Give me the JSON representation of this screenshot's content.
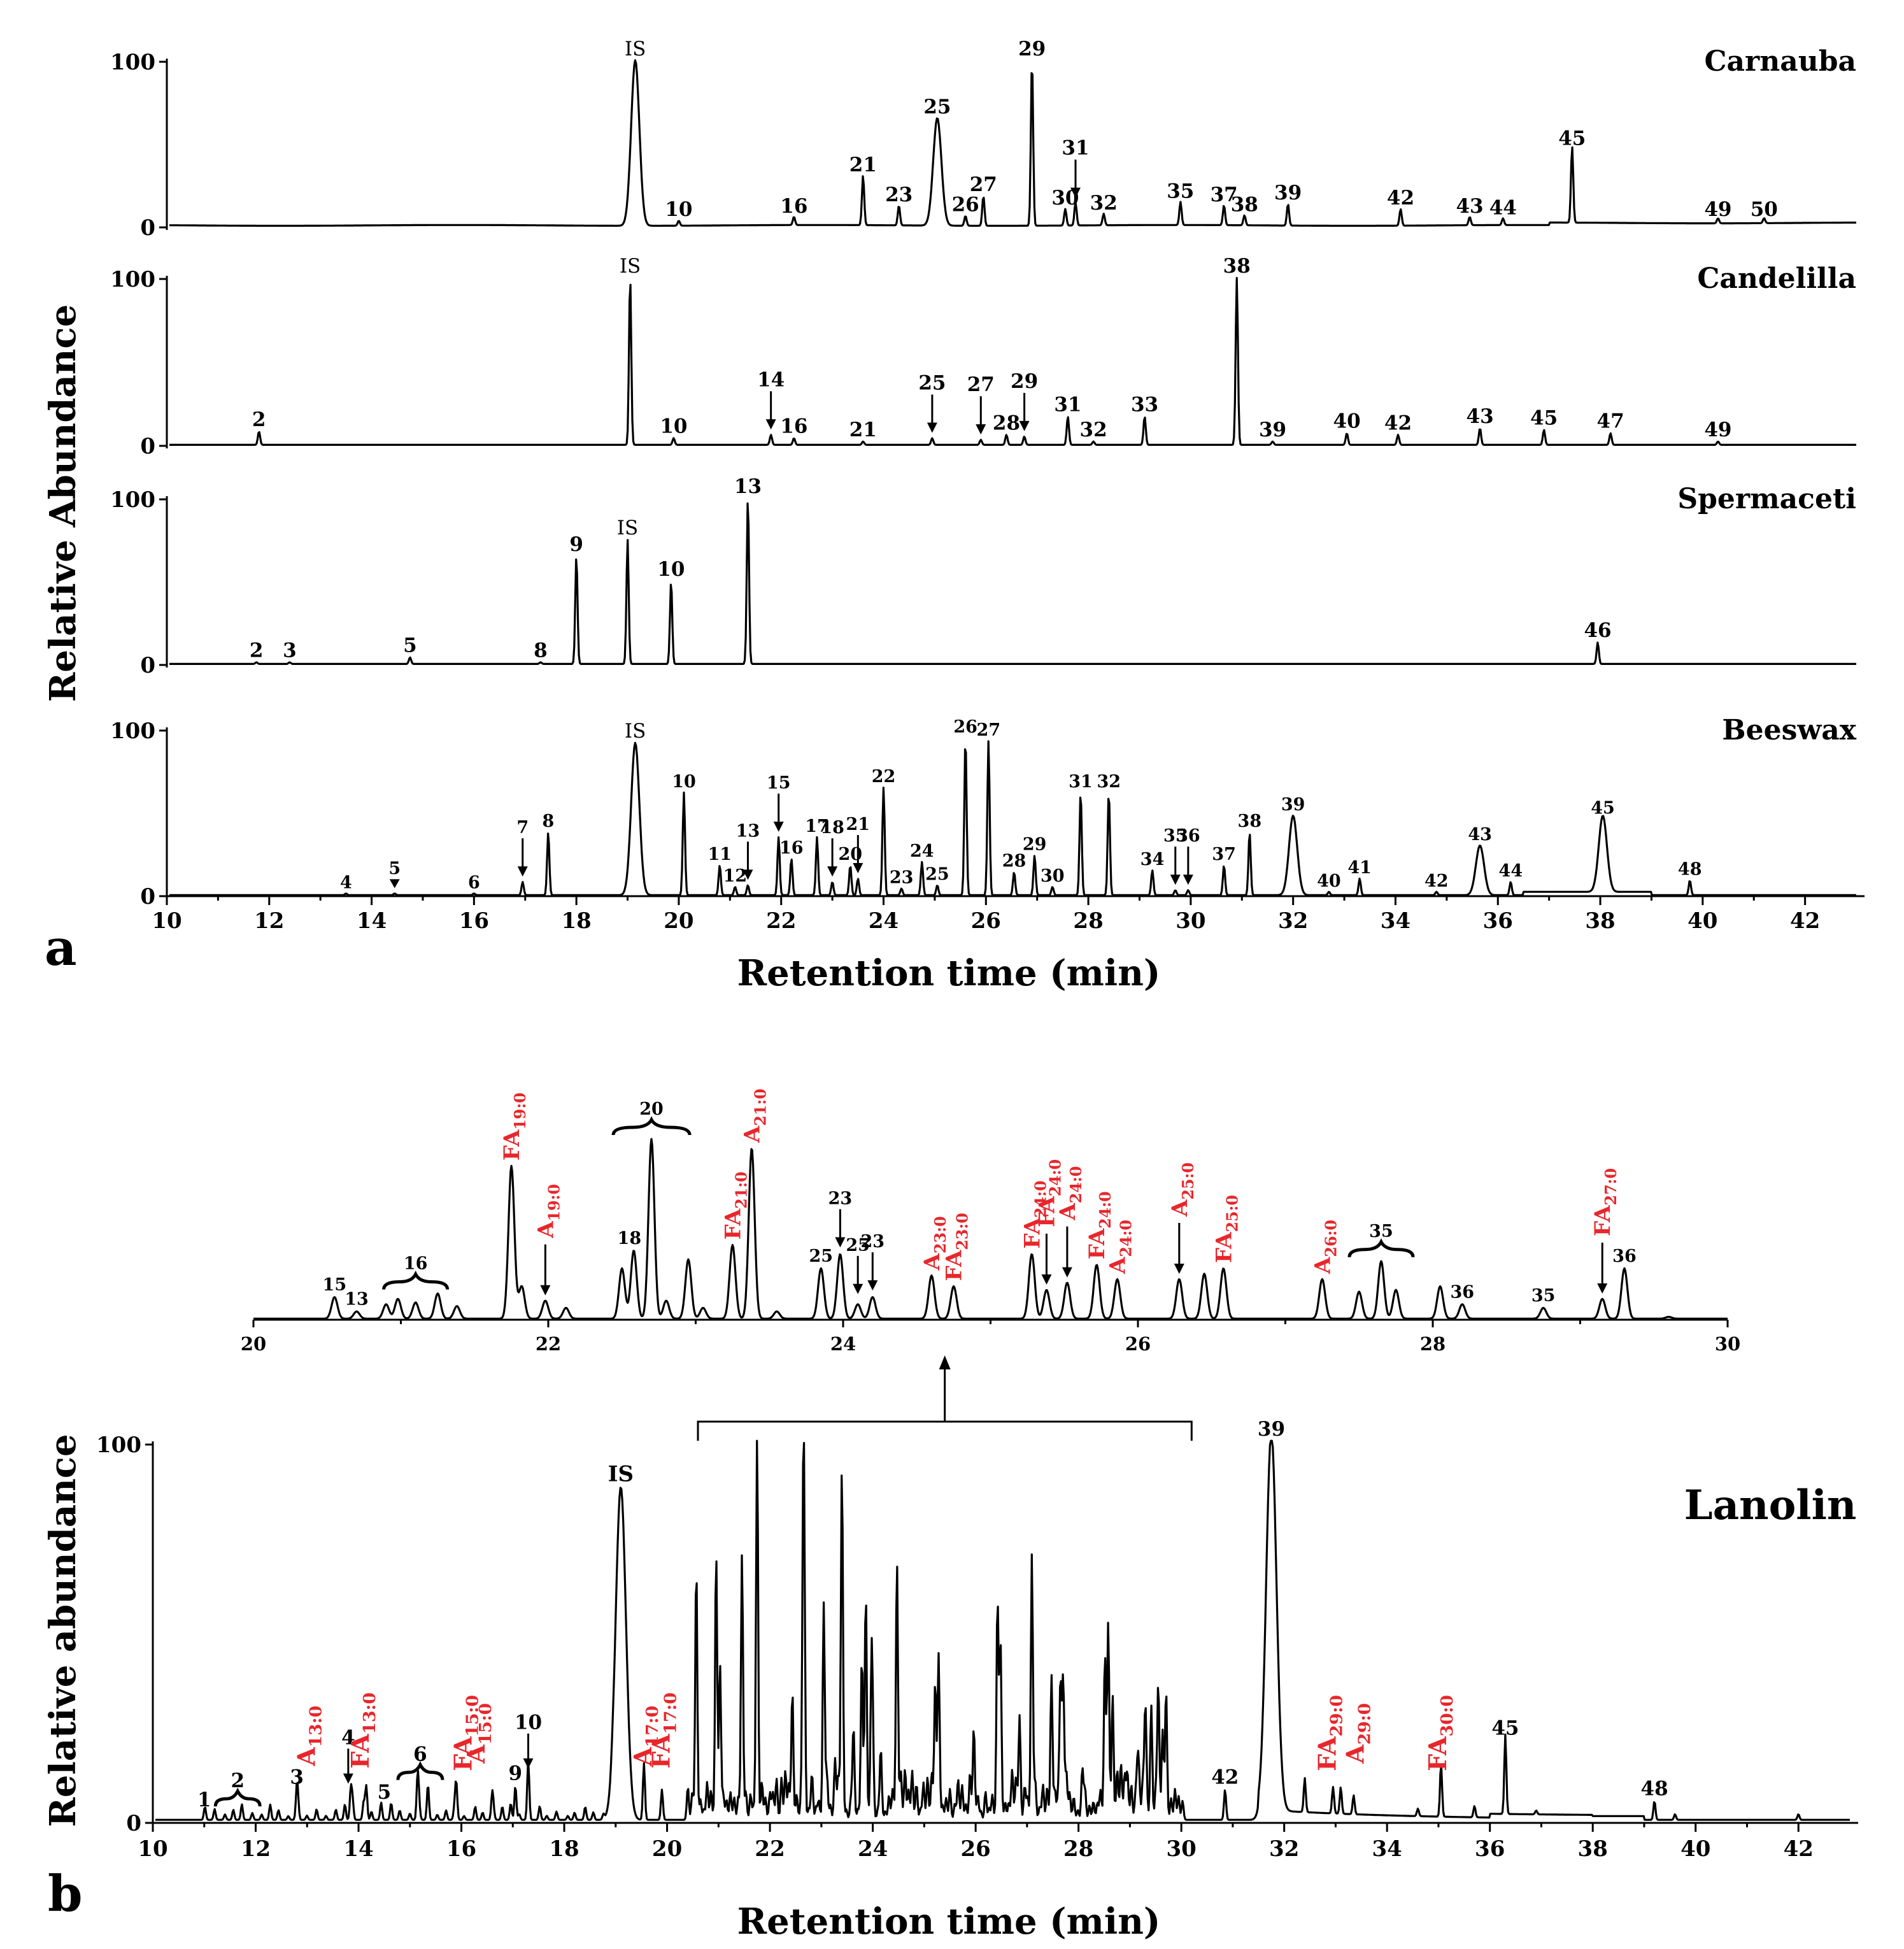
{
  "figure": {
    "panel_a_label": "a",
    "panel_b_label": "b"
  },
  "chart_data": [
    {
      "type": "line",
      "panel": "a",
      "xlabel": "Retention time (min)",
      "ylabel": "Relative Abundance",
      "xlim": [
        10,
        43
      ],
      "ylim": [
        0,
        100
      ],
      "x_ticks": [
        10,
        12,
        14,
        16,
        18,
        20,
        22,
        24,
        26,
        28,
        30,
        32,
        34,
        36,
        38,
        40,
        42
      ],
      "y_ticks": [
        0,
        100
      ],
      "series": [
        {
          "name": "Carnauba",
          "peaks": [
            {
              "rt": 19.15,
              "h": 100,
              "label": "IS",
              "wide": true
            },
            {
              "rt": 20.0,
              "h": 3,
              "label": "10"
            },
            {
              "rt": 22.25,
              "h": 5,
              "label": "16"
            },
            {
              "rt": 23.6,
              "h": 30,
              "label": "21"
            },
            {
              "rt": 24.3,
              "h": 12,
              "label": "23"
            },
            {
              "rt": 25.05,
              "h": 65,
              "label": "25",
              "wide": true
            },
            {
              "rt": 25.6,
              "h": 6,
              "label": "26"
            },
            {
              "rt": 25.95,
              "h": 18,
              "label": "27"
            },
            {
              "rt": 26.9,
              "h": 100,
              "label": "29"
            },
            {
              "rt": 27.55,
              "h": 10,
              "label": "30"
            },
            {
              "rt": 27.75,
              "h": 14,
              "label": "31",
              "arrow": true
            },
            {
              "rt": 28.3,
              "h": 7,
              "label": "32"
            },
            {
              "rt": 29.8,
              "h": 14,
              "label": "35"
            },
            {
              "rt": 30.65,
              "h": 12,
              "label": "37"
            },
            {
              "rt": 31.05,
              "h": 6,
              "label": "38"
            },
            {
              "rt": 31.9,
              "h": 13,
              "label": "39"
            },
            {
              "rt": 34.1,
              "h": 10,
              "label": "42"
            },
            {
              "rt": 35.45,
              "h": 5,
              "label": "43"
            },
            {
              "rt": 36.1,
              "h": 4,
              "label": "44"
            },
            {
              "rt": 37.45,
              "h": 46,
              "label": "45"
            },
            {
              "rt": 40.3,
              "h": 3,
              "label": "49"
            },
            {
              "rt": 41.2,
              "h": 3,
              "label": "50"
            }
          ]
        },
        {
          "name": "Candelilla",
          "peaks": [
            {
              "rt": 11.8,
              "h": 8,
              "label": "2"
            },
            {
              "rt": 19.05,
              "h": 100,
              "label": "IS"
            },
            {
              "rt": 19.9,
              "h": 4,
              "label": "10"
            },
            {
              "rt": 21.8,
              "h": 6,
              "label": "14",
              "arrow": true
            },
            {
              "rt": 22.25,
              "h": 4,
              "label": "16"
            },
            {
              "rt": 23.6,
              "h": 2,
              "label": "21"
            },
            {
              "rt": 24.95,
              "h": 4,
              "label": "25",
              "arrow": true
            },
            {
              "rt": 25.9,
              "h": 3,
              "label": "27",
              "arrow": true
            },
            {
              "rt": 26.4,
              "h": 6,
              "label": "28"
            },
            {
              "rt": 26.75,
              "h": 5,
              "label": "29",
              "arrow": true
            },
            {
              "rt": 27.6,
              "h": 17,
              "label": "31"
            },
            {
              "rt": 28.1,
              "h": 2,
              "label": "32"
            },
            {
              "rt": 29.1,
              "h": 17,
              "label": "33"
            },
            {
              "rt": 30.9,
              "h": 100,
              "label": "38"
            },
            {
              "rt": 31.6,
              "h": 2,
              "label": "39"
            },
            {
              "rt": 33.05,
              "h": 7,
              "label": "40"
            },
            {
              "rt": 34.05,
              "h": 6,
              "label": "42"
            },
            {
              "rt": 35.65,
              "h": 10,
              "label": "43"
            },
            {
              "rt": 36.9,
              "h": 9,
              "label": "45"
            },
            {
              "rt": 38.2,
              "h": 7,
              "label": "47"
            },
            {
              "rt": 40.3,
              "h": 2,
              "label": "49"
            }
          ]
        },
        {
          "name": "Spermaceti",
          "peaks": [
            {
              "rt": 11.75,
              "h": 1,
              "label": "2"
            },
            {
              "rt": 12.4,
              "h": 1,
              "label": "3"
            },
            {
              "rt": 14.75,
              "h": 4,
              "label": "5"
            },
            {
              "rt": 17.3,
              "h": 1,
              "label": "8"
            },
            {
              "rt": 18.0,
              "h": 65,
              "label": "9"
            },
            {
              "rt": 19.0,
              "h": 75,
              "label": "IS"
            },
            {
              "rt": 19.85,
              "h": 50,
              "label": "10"
            },
            {
              "rt": 21.35,
              "h": 100,
              "label": "13"
            },
            {
              "rt": 37.95,
              "h": 13,
              "label": "46"
            }
          ]
        },
        {
          "name": "Beeswax",
          "peaks": [
            {
              "rt": 13.5,
              "h": 1,
              "label": "4"
            },
            {
              "rt": 14.45,
              "h": 1,
              "label": "5",
              "triangle": true
            },
            {
              "rt": 16.0,
              "h": 1,
              "label": "6"
            },
            {
              "rt": 16.95,
              "h": 8,
              "label": "7",
              "arrow": true
            },
            {
              "rt": 17.45,
              "h": 38,
              "label": "8"
            },
            {
              "rt": 19.15,
              "h": 92,
              "label": "IS",
              "wide": true
            },
            {
              "rt": 20.1,
              "h": 62,
              "label": "10"
            },
            {
              "rt": 20.8,
              "h": 18,
              "label": "11"
            },
            {
              "rt": 21.1,
              "h": 5,
              "label": "12"
            },
            {
              "rt": 21.35,
              "h": 6,
              "label": "13",
              "arrow": true
            },
            {
              "rt": 21.95,
              "h": 35,
              "label": "15",
              "arrow": true
            },
            {
              "rt": 22.2,
              "h": 22,
              "label": "16"
            },
            {
              "rt": 22.7,
              "h": 35,
              "label": "17"
            },
            {
              "rt": 23.0,
              "h": 8,
              "label": "18",
              "arrow": true
            },
            {
              "rt": 23.35,
              "h": 18,
              "label": "20"
            },
            {
              "rt": 23.5,
              "h": 10,
              "label": "21",
              "arrow": true
            },
            {
              "rt": 24.0,
              "h": 65,
              "label": "22"
            },
            {
              "rt": 24.35,
              "h": 4,
              "label": "23"
            },
            {
              "rt": 24.75,
              "h": 20,
              "label": "24"
            },
            {
              "rt": 25.05,
              "h": 6,
              "label": "25"
            },
            {
              "rt": 25.6,
              "h": 95,
              "label": "26"
            },
            {
              "rt": 26.05,
              "h": 93,
              "label": "27"
            },
            {
              "rt": 26.55,
              "h": 14,
              "label": "28"
            },
            {
              "rt": 26.95,
              "h": 24,
              "label": "29"
            },
            {
              "rt": 27.3,
              "h": 5,
              "label": "30"
            },
            {
              "rt": 27.85,
              "h": 62,
              "label": "31"
            },
            {
              "rt": 28.4,
              "h": 62,
              "label": "32"
            },
            {
              "rt": 29.25,
              "h": 15,
              "label": "34"
            },
            {
              "rt": 29.7,
              "h": 3,
              "label": "35",
              "arrow": true
            },
            {
              "rt": 29.95,
              "h": 3,
              "label": "36",
              "arrow": true
            },
            {
              "rt": 30.65,
              "h": 18,
              "label": "37"
            },
            {
              "rt": 31.15,
              "h": 38,
              "label": "38"
            },
            {
              "rt": 32.0,
              "h": 48,
              "label": "39",
              "wide": true
            },
            {
              "rt": 32.7,
              "h": 2,
              "label": "40"
            },
            {
              "rt": 33.3,
              "h": 10,
              "label": "41"
            },
            {
              "rt": 34.8,
              "h": 2,
              "label": "42"
            },
            {
              "rt": 35.65,
              "h": 30,
              "label": "43",
              "wide": true
            },
            {
              "rt": 36.25,
              "h": 8,
              "label": "44"
            },
            {
              "rt": 38.05,
              "h": 46,
              "label": "45",
              "wide": true
            },
            {
              "rt": 39.75,
              "h": 9,
              "label": "48"
            }
          ]
        }
      ]
    },
    {
      "type": "line",
      "panel": "b",
      "title": "Lanolin",
      "xlabel": "Retention time (min)",
      "ylabel": "Relative abundance",
      "xlim": [
        10,
        43
      ],
      "ylim": [
        0,
        100
      ],
      "x_ticks": [
        10,
        12,
        14,
        16,
        18,
        20,
        22,
        24,
        26,
        28,
        30,
        32,
        34,
        36,
        38,
        40,
        42
      ],
      "y_ticks": [
        0,
        100
      ],
      "zoom_range": [
        20.6,
        30.2
      ],
      "peak_labels": [
        {
          "rt": 11.0,
          "h": 2,
          "label": "1"
        },
        {
          "rt": 11.65,
          "h": 3,
          "label": "2",
          "brace": true
        },
        {
          "rt": 12.8,
          "h": 8,
          "label": "3"
        },
        {
          "rt": 13.8,
          "h": 8,
          "label": "4",
          "arrow": true
        },
        {
          "rt": 14.5,
          "h": 4,
          "label": "5"
        },
        {
          "rt": 15.2,
          "h": 10,
          "label": "6",
          "brace": true
        },
        {
          "rt": 17.05,
          "h": 9,
          "label": "9"
        },
        {
          "rt": 17.3,
          "h": 12,
          "label": "10",
          "arrow": true
        },
        {
          "rt": 19.1,
          "h": 88,
          "label": "IS"
        },
        {
          "rt": 30.85,
          "h": 8,
          "label": "42"
        },
        {
          "rt": 31.75,
          "h": 100,
          "label": "39"
        },
        {
          "rt": 36.3,
          "h": 21,
          "label": "45"
        },
        {
          "rt": 39.2,
          "h": 5,
          "label": "48"
        }
      ],
      "annotations": [
        {
          "text": "A",
          "sub": "13:0",
          "rt": 13.0
        },
        {
          "text": "FA",
          "sub": "13:0",
          "rt": 14.05
        },
        {
          "text": "FA",
          "sub": "15:0",
          "rt": 16.05
        },
        {
          "text": "A",
          "sub": "15:0",
          "rt": 16.3
        },
        {
          "text": "A",
          "sub": "17:0",
          "rt": 19.55
        },
        {
          "text": "FA",
          "sub": "17:0",
          "rt": 19.9
        },
        {
          "text": "FA",
          "sub": "29:0",
          "rt": 32.85
        },
        {
          "text": "A",
          "sub": "29:0",
          "rt": 33.4
        },
        {
          "text": "FA",
          "sub": "30:0",
          "rt": 35.0
        }
      ],
      "inset": {
        "xlim": [
          20,
          30
        ],
        "x_ticks": [
          20,
          22,
          24,
          26,
          28,
          30
        ],
        "peak_labels": [
          {
            "rt": 20.55,
            "h": 12,
            "label": "15"
          },
          {
            "rt": 20.7,
            "h": 4,
            "label": "13"
          },
          {
            "rt": 21.1,
            "h": 14,
            "label": "16",
            "brace": true
          },
          {
            "rt": 22.55,
            "h": 38,
            "label": "18"
          },
          {
            "rt": 22.7,
            "h": 100,
            "label": "20",
            "brace": true
          },
          {
            "rt": 23.85,
            "h": 28,
            "label": "25"
          },
          {
            "rt": 23.98,
            "h": 36,
            "label": "23",
            "arrow": true
          },
          {
            "rt": 24.1,
            "h": 10,
            "label": "25",
            "arrow": true
          },
          {
            "rt": 24.2,
            "h": 12,
            "label": "23",
            "arrow": true
          },
          {
            "rt": 27.65,
            "h": 32,
            "label": "35",
            "brace": true
          },
          {
            "rt": 28.2,
            "h": 8,
            "label": "36"
          },
          {
            "rt": 28.75,
            "h": 6,
            "label": "35"
          },
          {
            "rt": 29.3,
            "h": 28,
            "label": "36"
          }
        ],
        "annotations": [
          {
            "text": "FA",
            "sub": "19:0",
            "rt": 21.75
          },
          {
            "text": "A",
            "sub": "19:0",
            "rt": 21.98,
            "arrow": true
          },
          {
            "text": "FA",
            "sub": "21:0",
            "rt": 23.25
          },
          {
            "text": "A",
            "sub": "21:0",
            "rt": 23.38
          },
          {
            "text": "A",
            "sub": "23:0",
            "rt": 24.6
          },
          {
            "text": "FA",
            "sub": "23:0",
            "rt": 24.75
          },
          {
            "text": "FA",
            "sub": "24:0",
            "rt": 25.28
          },
          {
            "text": "FA",
            "sub": "24:0",
            "rt": 25.38,
            "arrow": true
          },
          {
            "text": "A",
            "sub": "24:0",
            "rt": 25.52,
            "arrow": true
          },
          {
            "text": "FA",
            "sub": "24:0",
            "rt": 25.72
          },
          {
            "text": "A",
            "sub": "24:0",
            "rt": 25.86
          },
          {
            "text": "A",
            "sub": "25:0",
            "rt": 26.28,
            "arrow": true
          },
          {
            "text": "FA",
            "sub": "25:0",
            "rt": 26.58
          },
          {
            "text": "A",
            "sub": "26:0",
            "rt": 27.25
          },
          {
            "text": "FA",
            "sub": "27:0",
            "rt": 29.15,
            "arrow": true
          }
        ]
      }
    }
  ]
}
